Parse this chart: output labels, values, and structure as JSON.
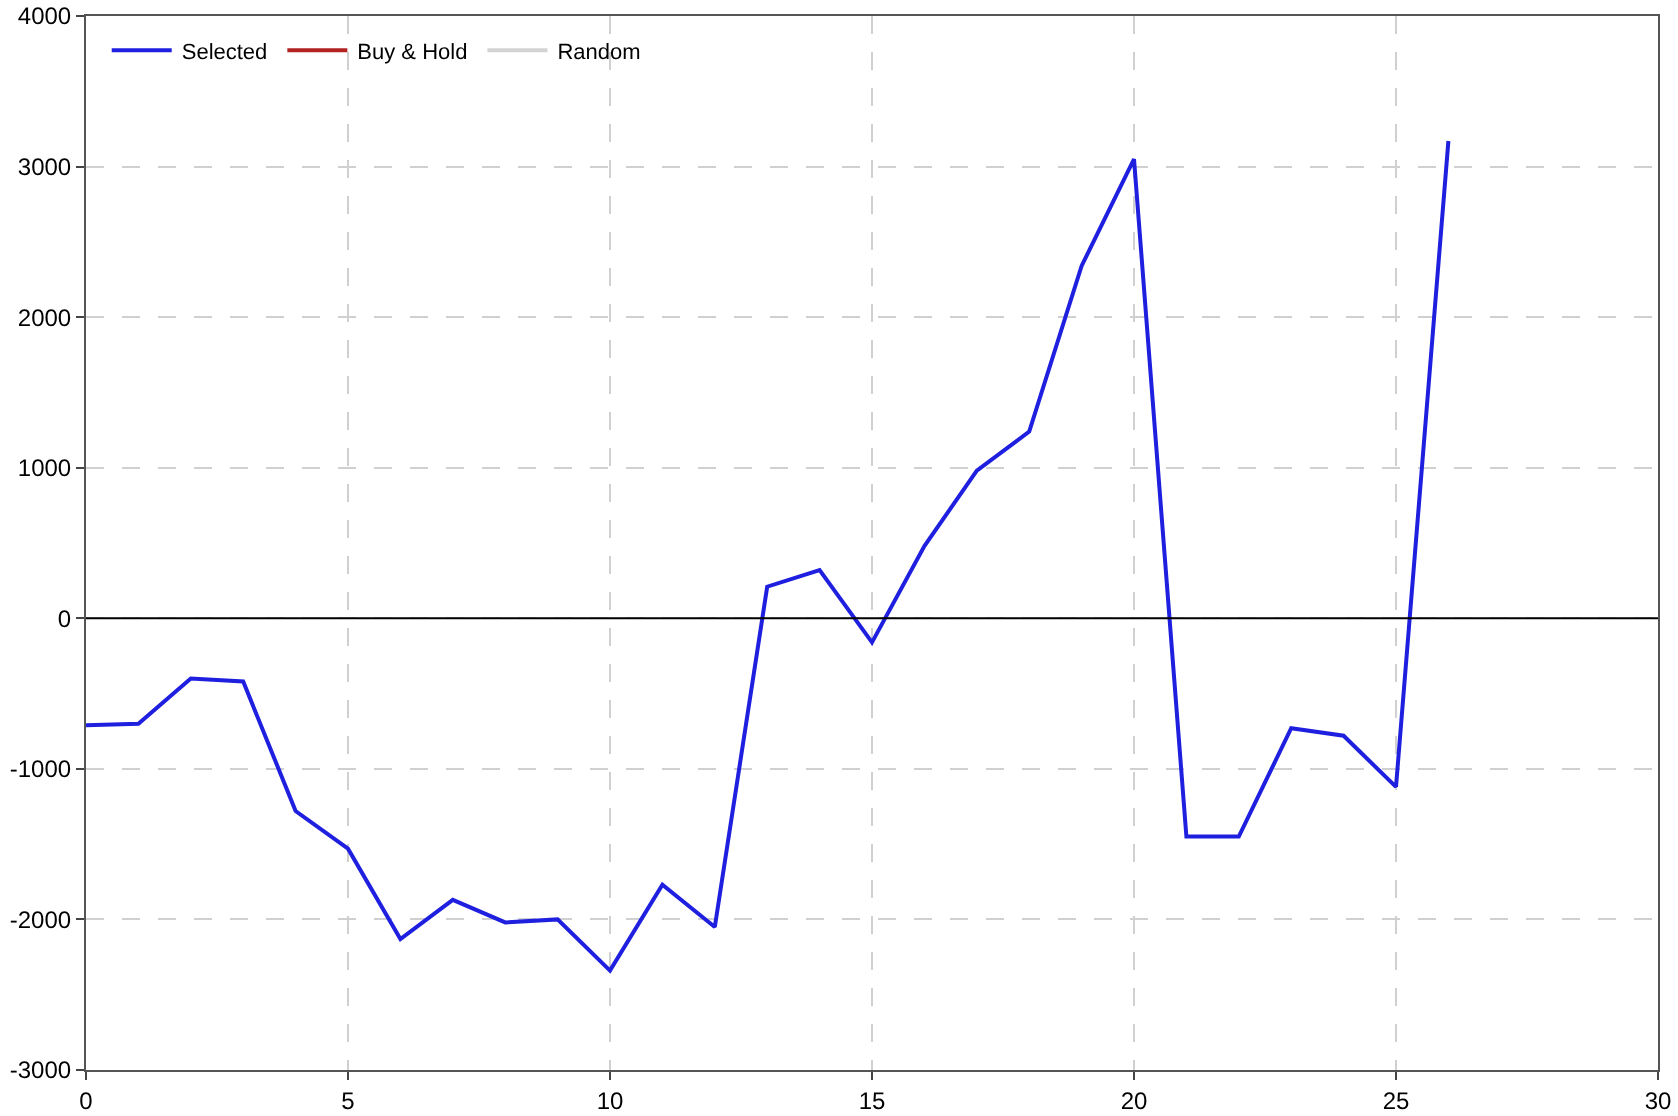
{
  "chart_data": {
    "type": "line",
    "x": [
      0,
      1,
      2,
      3,
      4,
      5,
      6,
      7,
      8,
      9,
      10,
      11,
      12,
      13,
      14,
      15,
      16,
      17,
      18,
      19,
      20,
      21,
      22,
      23,
      24,
      25,
      26
    ],
    "series": [
      {
        "name": "Selected",
        "color": "#1f1fe0",
        "values": [
          -710,
          -700,
          -400,
          -420,
          -1280,
          -1530,
          -2130,
          -1870,
          -2020,
          -2000,
          -2340,
          -1770,
          -2050,
          210,
          320,
          -160,
          480,
          980,
          1240,
          2340,
          3050,
          -1450,
          -1450,
          -730,
          -780,
          -1120,
          3170
        ]
      },
      {
        "name": "Buy & Hold",
        "color": "#b22222",
        "values": [
          null,
          null,
          null,
          null,
          null,
          null,
          null,
          null,
          null,
          null,
          null,
          null,
          null,
          null,
          null,
          null,
          null,
          null,
          null,
          null,
          null,
          null,
          null,
          null,
          null,
          null,
          null
        ]
      },
      {
        "name": "Random",
        "color": "#d3d3d3",
        "values": [
          null,
          null,
          null,
          null,
          null,
          null,
          null,
          null,
          null,
          null,
          null,
          null,
          null,
          null,
          null,
          null,
          null,
          null,
          null,
          null,
          null,
          null,
          null,
          null,
          null,
          null,
          null
        ]
      }
    ],
    "xlim": [
      0,
      30
    ],
    "xticks": [
      0,
      5,
      10,
      15,
      20,
      25,
      30
    ],
    "ylim": [
      -3000,
      4000
    ],
    "yticks": [
      -3000,
      -2000,
      -1000,
      0,
      1000,
      2000,
      3000,
      4000
    ],
    "ref_lines": [
      {
        "axis": "y",
        "value": 0,
        "color": "#000000"
      }
    ],
    "grid": true,
    "legend": "top left",
    "marker": "none",
    "line_style": "solid"
  }
}
